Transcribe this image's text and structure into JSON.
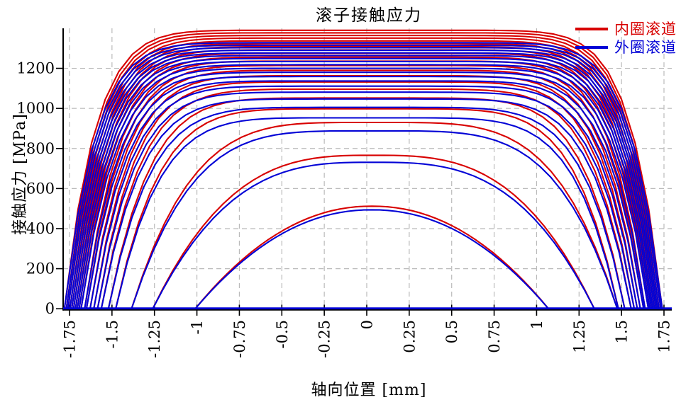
{
  "chart_data": {
    "type": "line",
    "title": "滚子接触应力",
    "xlabel": "轴向位置 [mm]",
    "ylabel": "接触应力 [MPa]",
    "xlim": [
      -1.75,
      1.75
    ],
    "ylim": [
      0,
      1400
    ],
    "xticks": [
      "-1.75",
      "-1.5",
      "-1.25",
      "-1",
      "-0.75",
      "-0.5",
      "-0.25",
      "0",
      "0.25",
      "0.5",
      "0.75",
      "1",
      "1.25",
      "1.5",
      "1.75"
    ],
    "yticks": [
      "0",
      "200",
      "400",
      "600",
      "800",
      "1000",
      "1200"
    ],
    "grid": {
      "show": true,
      "style": "dashed",
      "color": "#bababa"
    },
    "axis_color": "#000000",
    "baseline_color": "#0202d6",
    "legend": {
      "position": "top-right",
      "entries": [
        {
          "series": "inner",
          "label": "内圈滚道",
          "color": "#d80000"
        },
        {
          "series": "outer",
          "label": "外圈滚道",
          "color": "#0202d6"
        }
      ]
    },
    "curve_model": "y(x) = peak*(1-|(x-center)/half_length|^k) for |x-center|<=half_length, else 0; inner raceway drawn red, outer raceway blue",
    "rollers": [
      {
        "inner_peak": 1390,
        "outer_peak": 1328,
        "half_length": 1.76,
        "center": -0.02,
        "k": 9.5
      },
      {
        "inner_peak": 1377,
        "outer_peak": 1315,
        "half_length": 1.75,
        "center": -0.019,
        "k": 9.4
      },
      {
        "inner_peak": 1364,
        "outer_peak": 1303,
        "half_length": 1.74,
        "center": -0.019,
        "k": 9.3
      },
      {
        "inner_peak": 1351,
        "outer_peak": 1290,
        "half_length": 1.73,
        "center": -0.018,
        "k": 9.1
      },
      {
        "inner_peak": 1337,
        "outer_peak": 1277,
        "half_length": 1.72,
        "center": -0.017,
        "k": 9.0
      },
      {
        "inner_peak": 1323,
        "outer_peak": 1264,
        "half_length": 1.71,
        "center": -0.016,
        "k": 8.9
      },
      {
        "inner_peak": 1308,
        "outer_peak": 1249,
        "half_length": 1.7,
        "center": -0.015,
        "k": 8.7
      },
      {
        "inner_peak": 1292,
        "outer_peak": 1234,
        "half_length": 1.69,
        "center": -0.014,
        "k": 8.6
      },
      {
        "inner_peak": 1275,
        "outer_peak": 1218,
        "half_length": 1.68,
        "center": -0.013,
        "k": 8.4
      },
      {
        "inner_peak": 1256,
        "outer_peak": 1200,
        "half_length": 1.67,
        "center": -0.012,
        "k": 8.2
      },
      {
        "inner_peak": 1236,
        "outer_peak": 1180,
        "half_length": 1.65,
        "center": -0.011,
        "k": 8.1
      },
      {
        "inner_peak": 1214,
        "outer_peak": 1159,
        "half_length": 1.64,
        "center": -0.01,
        "k": 7.8
      },
      {
        "inner_peak": 1190,
        "outer_peak": 1137,
        "half_length": 1.62,
        "center": -0.009,
        "k": 7.6
      },
      {
        "inner_peak": 1163,
        "outer_peak": 1111,
        "half_length": 1.6,
        "center": -0.007,
        "k": 7.4
      },
      {
        "inner_peak": 1132,
        "outer_peak": 1081,
        "half_length": 1.58,
        "center": -0.005,
        "k": 7.1
      },
      {
        "inner_peak": 1096,
        "outer_peak": 1047,
        "half_length": 1.56,
        "center": -0.003,
        "k": 6.7
      },
      {
        "inner_peak": 1052,
        "outer_peak": 1005,
        "half_length": 1.52,
        "center": -0.001,
        "k": 6.3
      },
      {
        "inner_peak": 998,
        "outer_peak": 953,
        "half_length": 1.48,
        "center": 0.002,
        "k": 5.9
      },
      {
        "inner_peak": 930,
        "outer_peak": 888,
        "half_length": 1.43,
        "center": 0.045,
        "k": 4.2
      },
      {
        "inner_peak": 766,
        "outer_peak": 731,
        "half_length": 1.3,
        "center": 0.04,
        "k": 3.0
      },
      {
        "inner_peak": 512,
        "outer_peak": 494,
        "half_length": 1.04,
        "center": 0.03,
        "k": 2.1
      }
    ]
  }
}
